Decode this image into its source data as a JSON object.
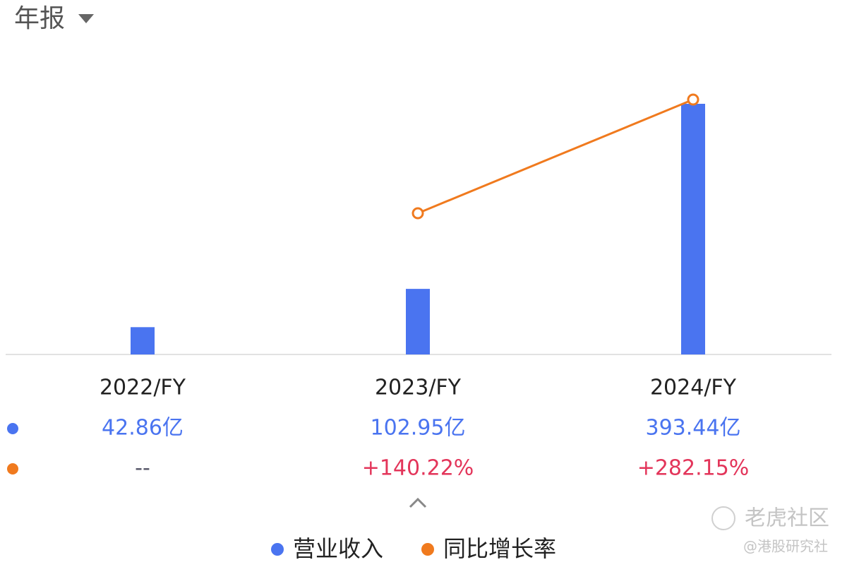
{
  "chart_data": {
    "type": "bar",
    "title": "年报",
    "categories": [
      "2022/FY",
      "2023/FY",
      "2024/FY"
    ],
    "series": [
      {
        "name": "营业收入",
        "type": "bar",
        "color": "#4a74f0",
        "values": [
          42.86,
          102.95,
          393.44
        ],
        "value_labels": [
          "42.86亿",
          "102.95亿",
          "393.44亿"
        ]
      },
      {
        "name": "同比增长率",
        "type": "line",
        "axis": "y2",
        "color": "#f07a1e",
        "values": [
          null,
          140.22,
          282.15
        ],
        "value_labels": [
          "--",
          "+140.22%",
          "+282.15%"
        ]
      }
    ]
  },
  "watermark": {
    "site": "老虎社区",
    "author": "@港股研究社"
  }
}
